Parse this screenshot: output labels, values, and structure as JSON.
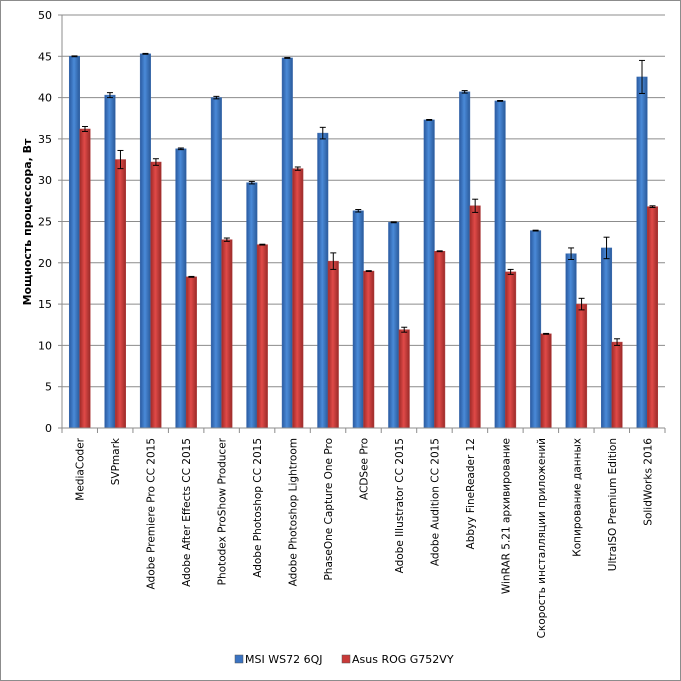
{
  "chart_data": {
    "type": "bar",
    "title": "",
    "xlabel": "",
    "ylabel": "Мощность процессора, Вт",
    "ylim": [
      0,
      50
    ],
    "yticks": [
      0,
      5,
      10,
      15,
      20,
      25,
      30,
      35,
      40,
      45,
      50
    ],
    "grid": true,
    "legend_position": "bottom",
    "categories": [
      "MediaCoder",
      "SVPmark",
      "Adobe Premiere Pro CC 2015",
      "Adobe After Effects CC 2015",
      "Photodex ProShow Producer",
      "Adobe Photoshop CC 2015",
      "Adobe Photoshop Lightroom",
      "PhaseOne Capture One Pro",
      "ACDSee Pro",
      "Adobe Illustrator CC 2015",
      "Adobe Audition CC 2015",
      "Abbyy FineReader 12",
      "WinRAR 5.21 архивирование",
      "Скорость инсталляции приложений",
      "Копирование данных",
      "UltraISO Premium Edition",
      "SolidWorks 2016"
    ],
    "series": [
      {
        "name": "MSI WS72 6QJ",
        "color": "#3a73c2",
        "values": [
          45.0,
          40.3,
          45.3,
          33.8,
          40.0,
          29.7,
          44.8,
          35.7,
          26.3,
          24.9,
          37.3,
          40.7,
          39.6,
          23.9,
          21.1,
          21.8,
          42.5
        ],
        "errors": [
          0.05,
          0.3,
          0.05,
          0.1,
          0.15,
          0.15,
          0.05,
          0.7,
          0.15,
          0.05,
          0.05,
          0.15,
          0.05,
          0.05,
          0.7,
          1.3,
          2.0
        ]
      },
      {
        "name": "Asus ROG G752VY",
        "color": "#c93a38",
        "values": [
          36.2,
          32.5,
          32.2,
          18.3,
          22.8,
          22.2,
          31.4,
          20.2,
          19.0,
          11.9,
          21.4,
          26.9,
          18.9,
          11.4,
          15.0,
          10.4,
          26.8
        ],
        "errors": [
          0.3,
          1.1,
          0.4,
          0.05,
          0.2,
          0.05,
          0.2,
          1.0,
          0.05,
          0.3,
          0.05,
          0.8,
          0.3,
          0.05,
          0.7,
          0.4,
          0.1
        ]
      }
    ]
  }
}
